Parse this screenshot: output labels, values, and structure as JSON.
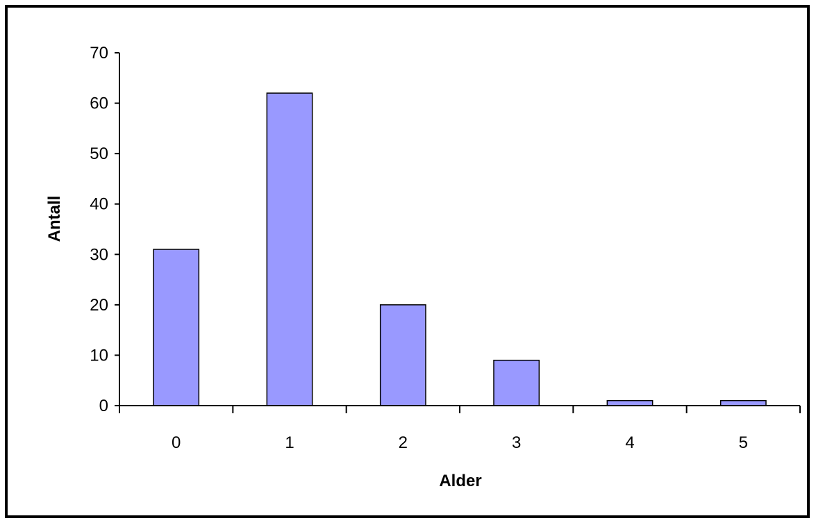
{
  "chart_data": {
    "type": "bar",
    "title": "",
    "xlabel": "Alder",
    "ylabel": "Antall",
    "categories": [
      "0",
      "1",
      "2",
      "3",
      "4",
      "5"
    ],
    "values": [
      31,
      62,
      20,
      9,
      1,
      1
    ],
    "ylim": [
      0,
      70
    ],
    "yticks": [
      0,
      10,
      20,
      30,
      40,
      50,
      60,
      70
    ],
    "grid": false,
    "legend": "none",
    "bar_color": "#9999ff",
    "bar_border_color": "#000000"
  }
}
